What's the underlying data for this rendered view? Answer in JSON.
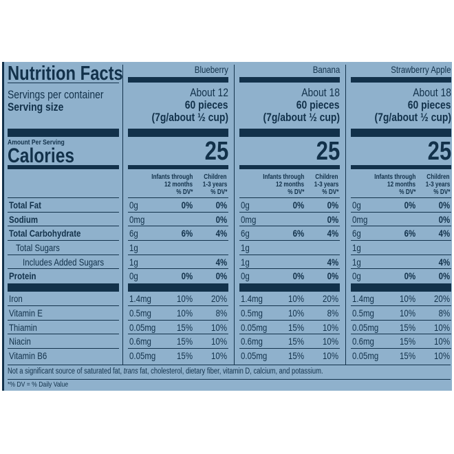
{
  "label": {
    "title": "Nutrition Facts",
    "servings_label": "Servings per container",
    "serving_size_label": "Serving size",
    "amount_per_serving": "Amount Per Serving",
    "calories_label": "Calories",
    "dv_headers": {
      "infants": [
        "Infants through",
        "12 months",
        "% DV*"
      ],
      "children": [
        "Children",
        "1-3 years",
        "% DV*"
      ]
    },
    "nutrients": [
      {
        "name": "Total Fat",
        "bold": true,
        "indent": 0
      },
      {
        "name": "Sodium",
        "bold": true,
        "indent": 0
      },
      {
        "name": "Total Carbohydrate",
        "bold": true,
        "indent": 0
      },
      {
        "name": "Total Sugars",
        "bold": false,
        "indent": 1
      },
      {
        "name": "Includes Added Sugars",
        "bold": false,
        "indent": 2
      },
      {
        "name": "Protein",
        "bold": true,
        "indent": 0
      }
    ],
    "vitamins": [
      "Iron",
      "Vitamin E",
      "Thiamin",
      "Niacin",
      "Vitamin B6"
    ],
    "footnote_parts": [
      "Not a significant source of saturated fat, ",
      "trans",
      " fat, cholesterol, dietary fiber, vitamin D, calcium, and potassium."
    ],
    "dv_note": "*% DV = % Daily Value"
  },
  "products": [
    {
      "name": "Blueberry",
      "servings": "About 12",
      "serving_pieces": "60 pieces",
      "serving_weight": "(7g/about ½ cup)",
      "calories": "25",
      "nutrients": [
        [
          "0g",
          "0%",
          "0%"
        ],
        [
          "0mg",
          "",
          "0%"
        ],
        [
          "6g",
          "6%",
          "4%"
        ],
        [
          "1g",
          "",
          ""
        ],
        [
          "1g",
          "",
          "4%"
        ],
        [
          "0g",
          "0%",
          "0%"
        ]
      ],
      "vitamins": [
        [
          "1.4mg",
          "10%",
          "20%"
        ],
        [
          "0.5mg",
          "10%",
          "8%"
        ],
        [
          "0.05mg",
          "15%",
          "10%"
        ],
        [
          "0.6mg",
          "15%",
          "10%"
        ],
        [
          "0.05mg",
          "15%",
          "10%"
        ]
      ]
    },
    {
      "name": "Banana",
      "servings": "About 18",
      "serving_pieces": "60 pieces",
      "serving_weight": "(7g/about ½ cup)",
      "calories": "25",
      "nutrients": [
        [
          "0g",
          "0%",
          "0%"
        ],
        [
          "0mg",
          "",
          "0%"
        ],
        [
          "6g",
          "6%",
          "4%"
        ],
        [
          "1g",
          "",
          ""
        ],
        [
          "1g",
          "",
          "4%"
        ],
        [
          "0g",
          "0%",
          "0%"
        ]
      ],
      "vitamins": [
        [
          "1.4mg",
          "10%",
          "20%"
        ],
        [
          "0.5mg",
          "10%",
          "8%"
        ],
        [
          "0.05mg",
          "15%",
          "10%"
        ],
        [
          "0.6mg",
          "15%",
          "10%"
        ],
        [
          "0.05mg",
          "15%",
          "10%"
        ]
      ]
    },
    {
      "name": "Strawberry Apple",
      "servings": "About 18",
      "serving_pieces": "60 pieces",
      "serving_weight": "(7g/about ½ cup)",
      "calories": "25",
      "nutrients": [
        [
          "0g",
          "0%",
          "0%"
        ],
        [
          "0mg",
          "",
          "0%"
        ],
        [
          "6g",
          "6%",
          "4%"
        ],
        [
          "1g",
          "",
          ""
        ],
        [
          "1g",
          "",
          "4%"
        ],
        [
          "0g",
          "0%",
          "0%"
        ]
      ],
      "vitamins": [
        [
          "1.4mg",
          "10%",
          "20%"
        ],
        [
          "0.5mg",
          "10%",
          "8%"
        ],
        [
          "0.05mg",
          "15%",
          "10%"
        ],
        [
          "0.6mg",
          "15%",
          "10%"
        ],
        [
          "0.05mg",
          "15%",
          "10%"
        ]
      ]
    }
  ],
  "colors": {
    "background": "#8fb1cc",
    "ink": "#12314a"
  }
}
